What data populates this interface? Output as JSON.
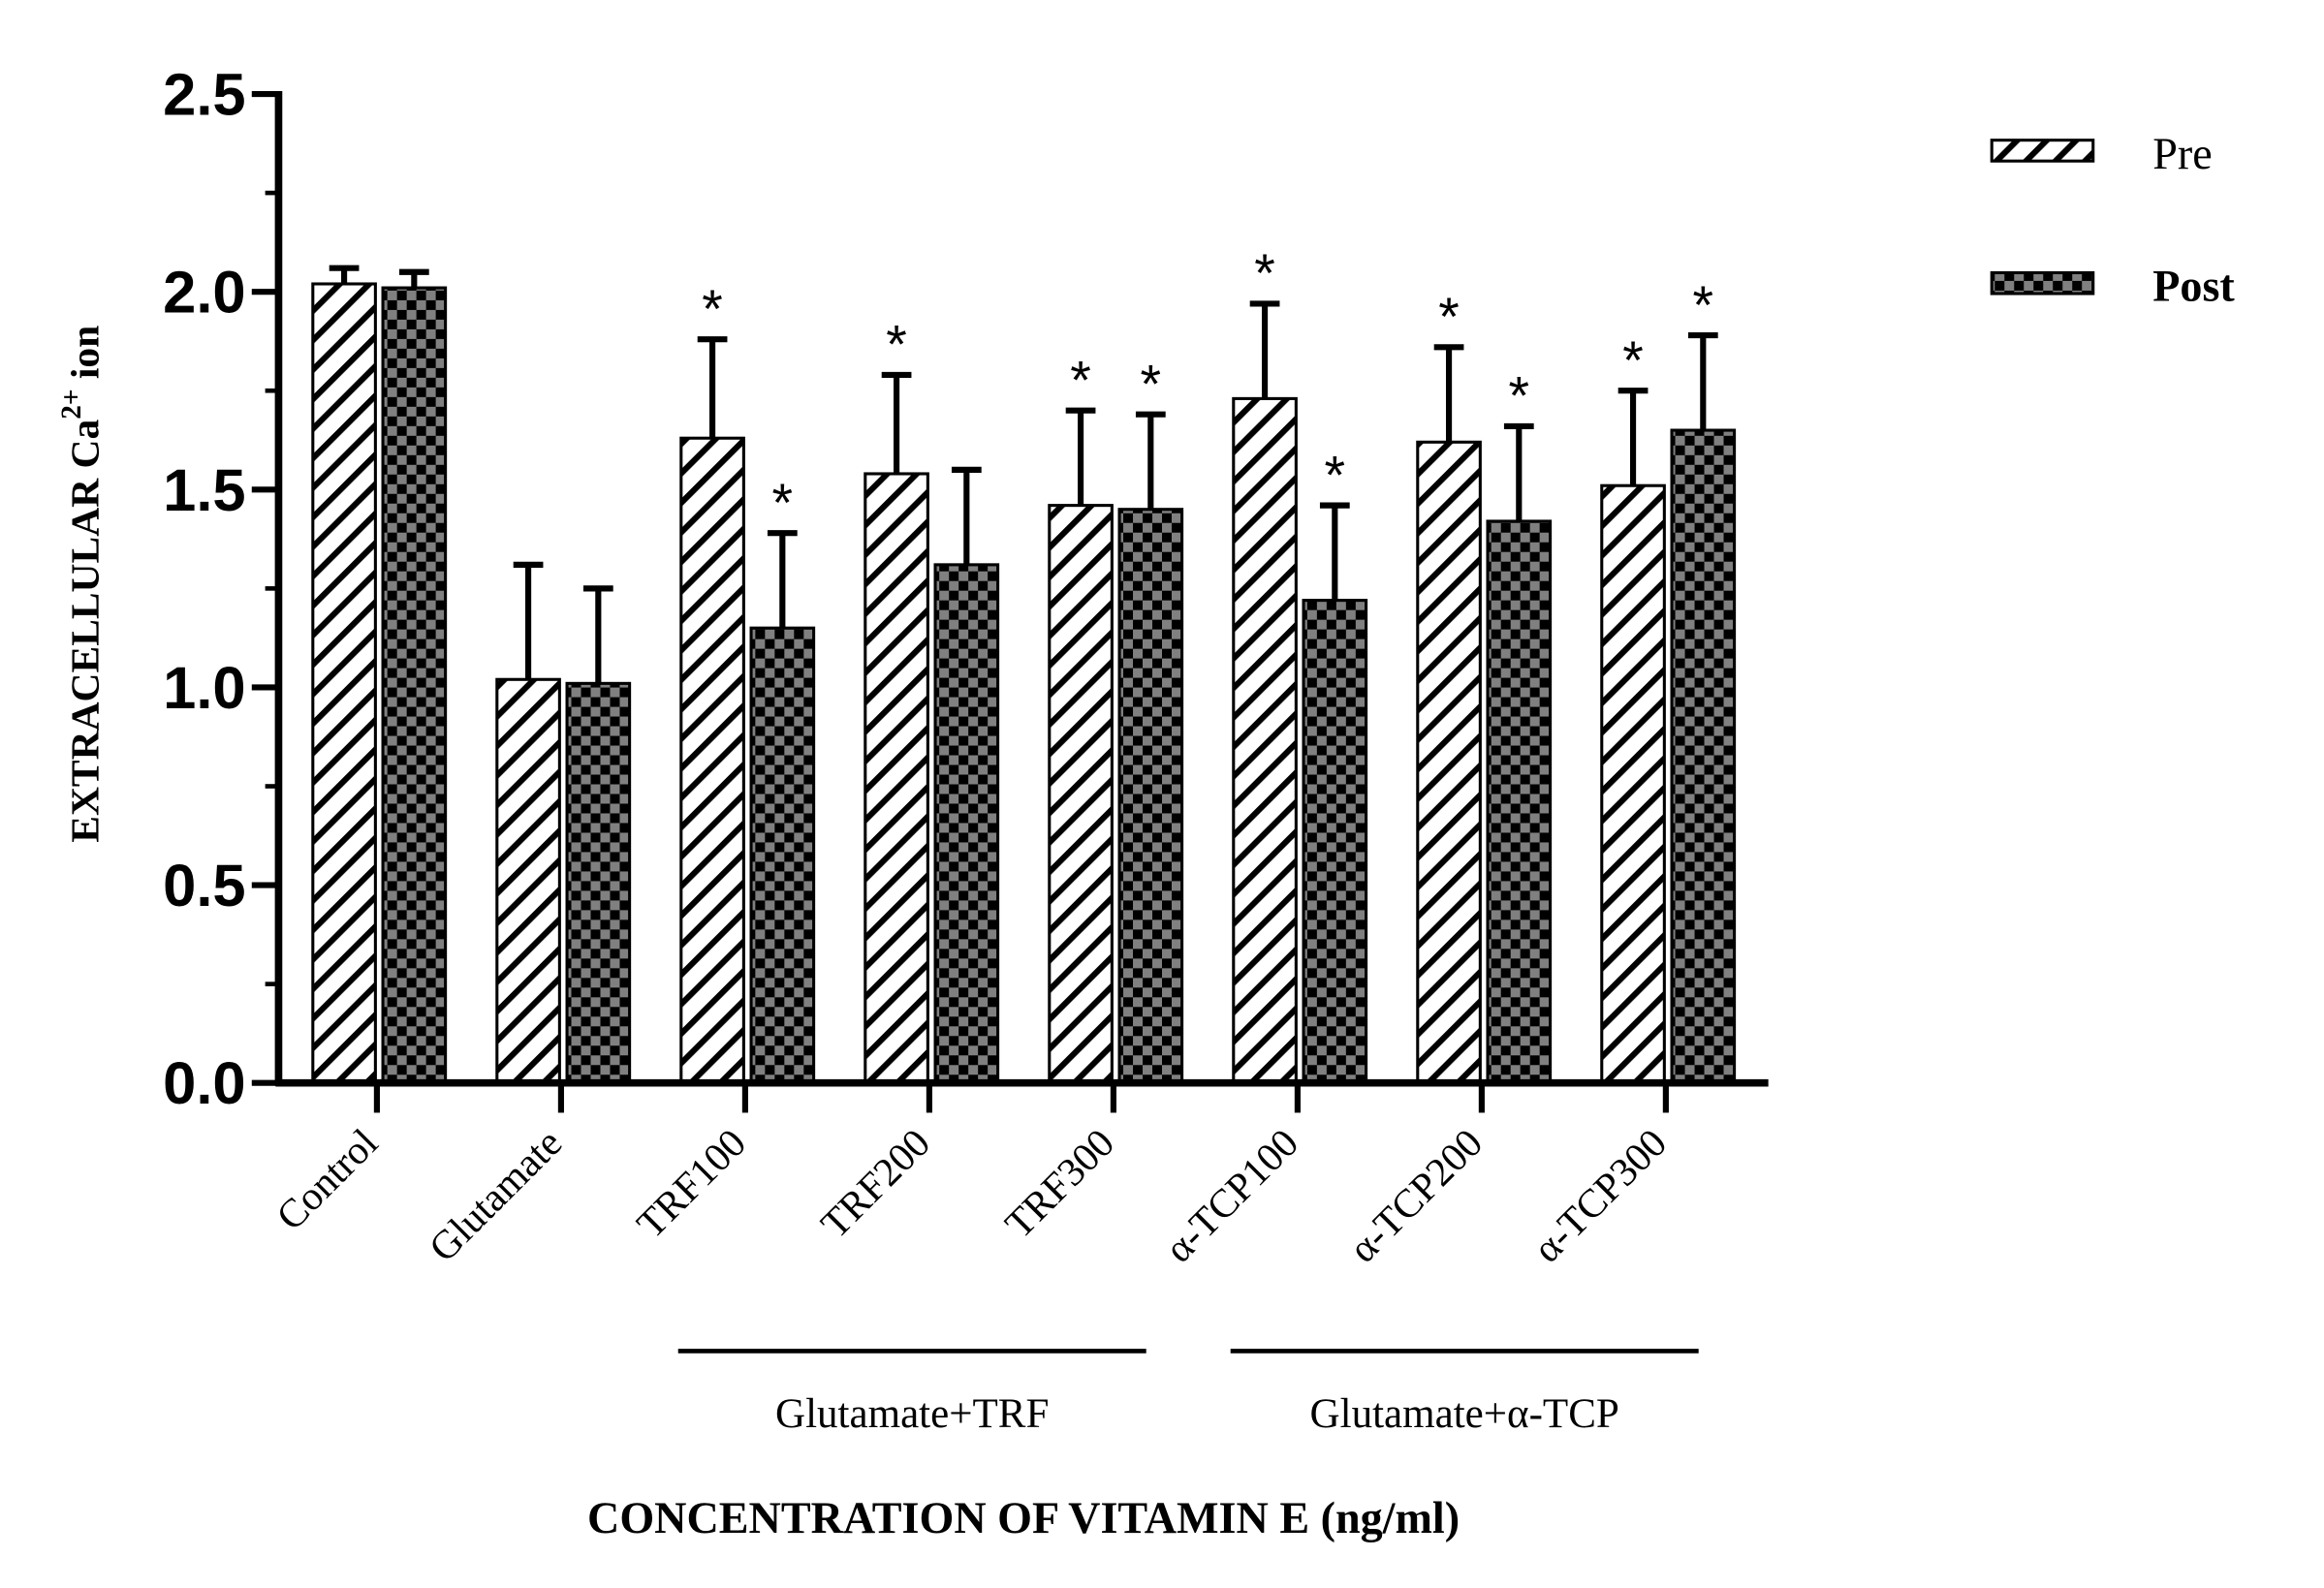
{
  "chart_data": {
    "type": "bar",
    "title": "",
    "xlabel": "CONCENTRATION OF VITAMIN E (ng/ml)",
    "ylabel": "EXTRACELLULAR Ca",
    "ylabel_sup": "2+",
    "ylabel_suffix": " ion",
    "ylim": [
      0,
      2.5
    ],
    "yticks": [
      "0.0",
      "0.5",
      "1.0",
      "1.5",
      "2.0",
      "2.5"
    ],
    "categories": [
      "Control",
      "Glutamate",
      "TRF100",
      "TRF200",
      "TRF300",
      "α-TCP100",
      "α-TCP200",
      "α-TCP300"
    ],
    "series": [
      {
        "name": "Pre",
        "pattern": "hatch",
        "values": [
          2.02,
          1.02,
          1.63,
          1.54,
          1.46,
          1.73,
          1.62,
          1.51
        ],
        "errors": [
          0.04,
          0.29,
          0.25,
          0.25,
          0.24,
          0.24,
          0.24,
          0.24
        ],
        "significant": [
          false,
          false,
          true,
          true,
          true,
          true,
          true,
          true
        ]
      },
      {
        "name": "Post",
        "pattern": "checker",
        "values": [
          2.01,
          1.01,
          1.15,
          1.31,
          1.45,
          1.22,
          1.42,
          1.65
        ],
        "errors": [
          0.04,
          0.24,
          0.24,
          0.24,
          0.24,
          0.24,
          0.24,
          0.24
        ],
        "significant": [
          false,
          false,
          true,
          false,
          true,
          true,
          true,
          true
        ]
      }
    ],
    "star_symbol": "*",
    "groups": [
      {
        "label": "Glutamate+TRF",
        "from": 2,
        "to": 4
      },
      {
        "label": "Glutamate+α-TCP",
        "from": 5,
        "to": 7
      }
    ],
    "legend": {
      "placement": "top-right"
    },
    "colors": {
      "checker_light": "#808080",
      "checker_dark": "#000000",
      "axis": "#000000"
    }
  }
}
